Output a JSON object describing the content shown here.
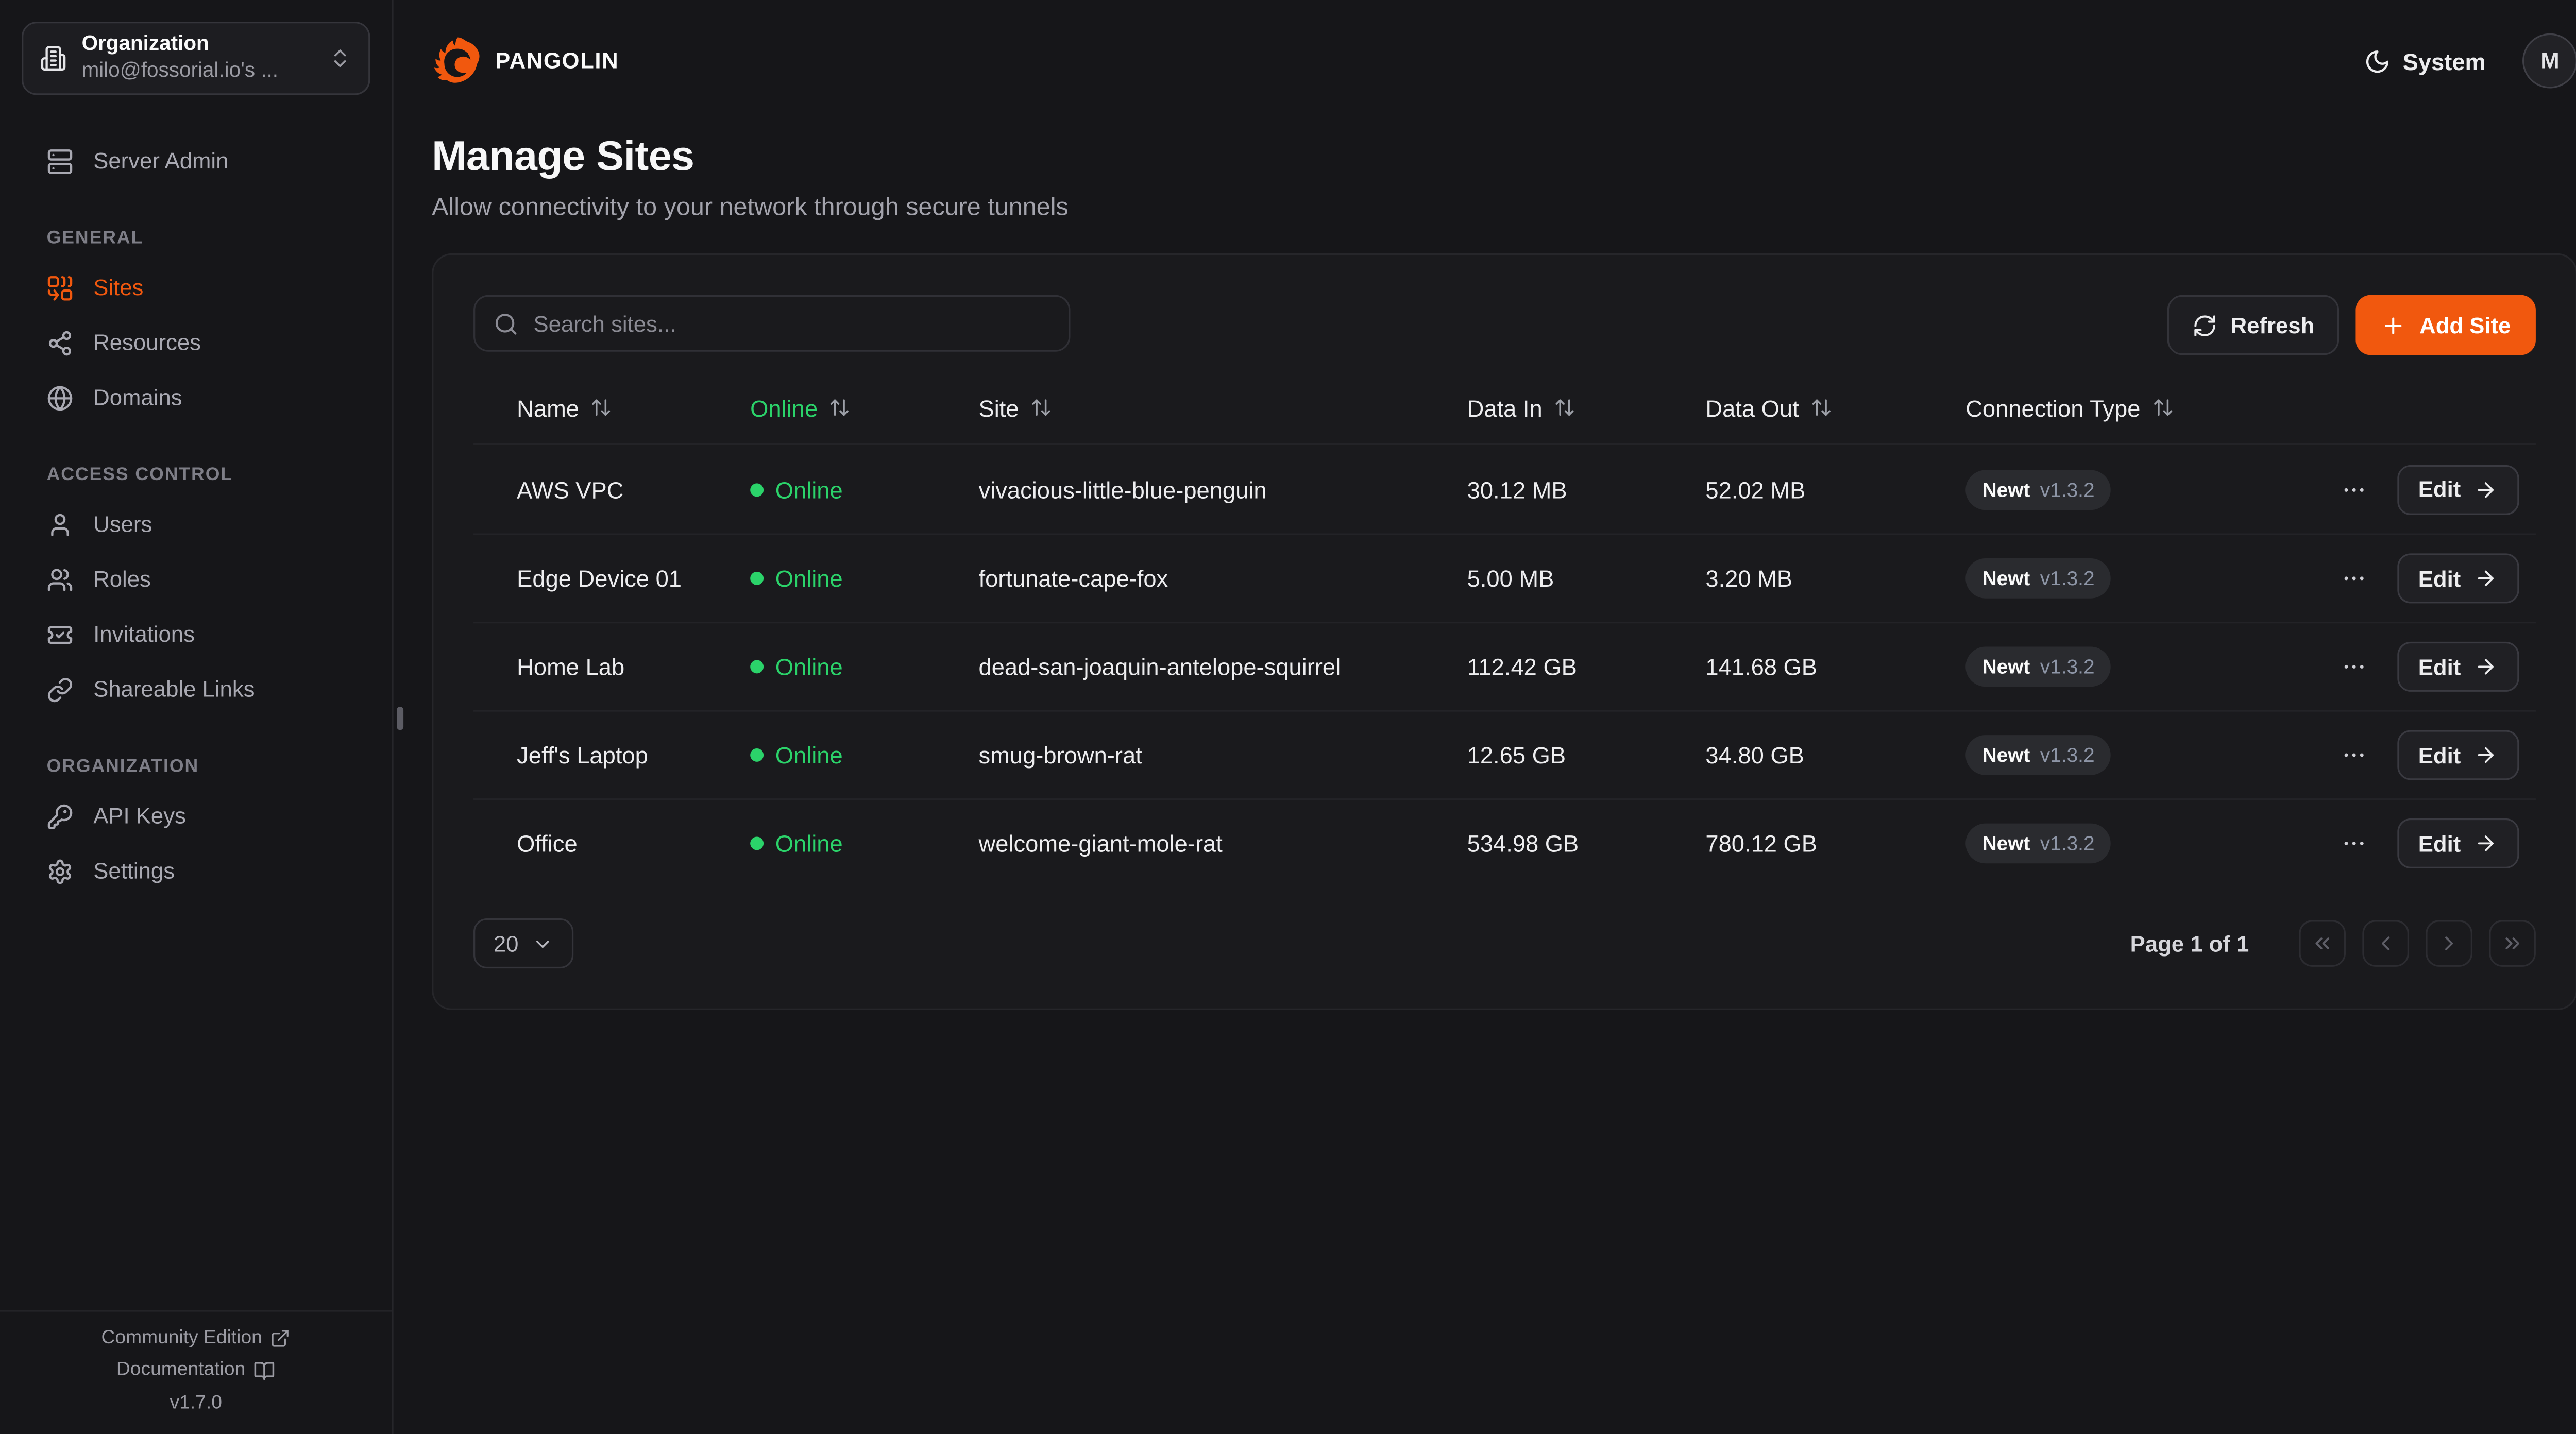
{
  "app": {
    "brand": "PANGOLIN"
  },
  "topbar": {
    "theme_label": "System",
    "avatar_initial": "M"
  },
  "sidebar": {
    "org_switcher": {
      "label": "Organization",
      "value": "milo@fossorial.io's ..."
    },
    "server_admin": {
      "label": "Server Admin"
    },
    "sections": [
      {
        "label": "GENERAL",
        "items": [
          {
            "label": "Sites"
          },
          {
            "label": "Resources"
          },
          {
            "label": "Domains"
          }
        ]
      },
      {
        "label": "ACCESS CONTROL",
        "items": [
          {
            "label": "Users"
          },
          {
            "label": "Roles"
          },
          {
            "label": "Invitations"
          },
          {
            "label": "Shareable Links"
          }
        ]
      },
      {
        "label": "ORGANIZATION",
        "items": [
          {
            "label": "API Keys"
          },
          {
            "label": "Settings"
          }
        ]
      }
    ],
    "footer": {
      "community": "Community Edition",
      "docs": "Documentation",
      "version": "v1.7.0"
    }
  },
  "page": {
    "title": "Manage Sites",
    "subtitle": "Allow connectivity to your network through secure tunnels"
  },
  "toolbar": {
    "search_placeholder": "Search sites...",
    "refresh_label": "Refresh",
    "add_site_label": "Add Site"
  },
  "table": {
    "columns": [
      "Name",
      "Online",
      "Site",
      "Data In",
      "Data Out",
      "Connection Type"
    ],
    "rows": [
      {
        "name": "AWS VPC",
        "status": "Online",
        "site": "vivacious-little-blue-penguin",
        "data_in": "30.12 MB",
        "data_out": "52.02 MB",
        "connection": "Newt",
        "version": "v1.3.2",
        "edit_label": "Edit"
      },
      {
        "name": "Edge Device 01",
        "status": "Online",
        "site": "fortunate-cape-fox",
        "data_in": "5.00 MB",
        "data_out": "3.20 MB",
        "connection": "Newt",
        "version": "v1.3.2",
        "edit_label": "Edit"
      },
      {
        "name": "Home Lab",
        "status": "Online",
        "site": "dead-san-joaquin-antelope-squirrel",
        "data_in": "112.42 GB",
        "data_out": "141.68 GB",
        "connection": "Newt",
        "version": "v1.3.2",
        "edit_label": "Edit"
      },
      {
        "name": "Jeff's Laptop",
        "status": "Online",
        "site": "smug-brown-rat",
        "data_in": "12.65 GB",
        "data_out": "34.80 GB",
        "connection": "Newt",
        "version": "v1.3.2",
        "edit_label": "Edit"
      },
      {
        "name": "Office",
        "status": "Online",
        "site": "welcome-giant-mole-rat",
        "data_in": "534.98 GB",
        "data_out": "780.12 GB",
        "connection": "Newt",
        "version": "v1.3.2",
        "edit_label": "Edit"
      }
    ]
  },
  "pagination": {
    "page_size": "20",
    "status": "Page 1 of 1"
  },
  "colors": {
    "accent": "#f1580e",
    "online": "#2bd36a"
  }
}
